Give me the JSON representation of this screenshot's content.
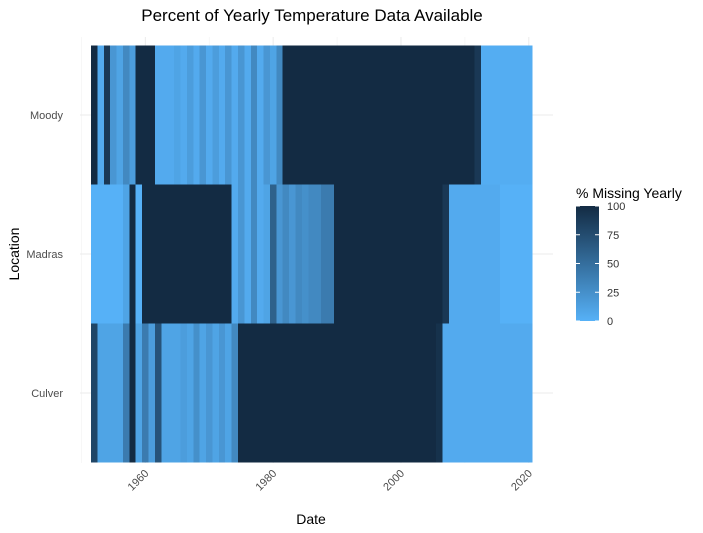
{
  "chart_data": {
    "type": "heatmap",
    "title": "Percent of Yearly Temperature Data Available",
    "xlabel": "Date",
    "ylabel": "Location",
    "xlim": [
      1951.5,
      2020.5
    ],
    "x_ticks": [
      1960,
      1980,
      2000,
      2020
    ],
    "locations": [
      "Culver",
      "Madras",
      "Moody"
    ],
    "grid": true,
    "legend": {
      "title": "% Missing Yearly",
      "position": "right",
      "min": 0,
      "max": 100,
      "ticks": [
        0,
        25,
        50,
        75,
        100
      ],
      "low_color": "#56B1F7",
      "high_color": "#132B43"
    },
    "series": [
      {
        "name": "Moody",
        "years": [
          1952,
          1953,
          1954,
          1955,
          1956,
          1957,
          1958,
          1959,
          1960,
          1961,
          1962,
          1963,
          1964,
          1965,
          1966,
          1967,
          1968,
          1969,
          1970,
          1971,
          1972,
          1973,
          1974,
          1975,
          1976,
          1977,
          1978,
          1979,
          1980,
          1981,
          1982,
          1983,
          1984,
          1985,
          1986,
          1987,
          1988,
          1989,
          1990,
          1991,
          1992,
          1993,
          1994,
          1995,
          1996,
          1997,
          1998,
          1999,
          2000,
          2001,
          2002,
          2003,
          2004,
          2005,
          2006,
          2007,
          2008,
          2009,
          2010,
          2011,
          2012,
          2013,
          2014,
          2015,
          2016,
          2017,
          2018,
          2019,
          2020
        ],
        "values": [
          100,
          5,
          90,
          20,
          10,
          30,
          15,
          100,
          100,
          100,
          5,
          5,
          5,
          10,
          5,
          15,
          5,
          20,
          5,
          15,
          5,
          20,
          5,
          20,
          5,
          30,
          5,
          20,
          10,
          30,
          100,
          100,
          100,
          100,
          100,
          100,
          100,
          100,
          100,
          100,
          100,
          100,
          100,
          100,
          100,
          100,
          100,
          100,
          100,
          100,
          100,
          100,
          100,
          100,
          100,
          100,
          100,
          100,
          100,
          100,
          90,
          3,
          3,
          3,
          3,
          3,
          3,
          3,
          3
        ]
      },
      {
        "name": "Madras",
        "years": [
          1952,
          1953,
          1954,
          1955,
          1956,
          1957,
          1958,
          1959,
          1960,
          1961,
          1962,
          1963,
          1964,
          1965,
          1966,
          1967,
          1968,
          1969,
          1970,
          1971,
          1972,
          1973,
          1974,
          1975,
          1976,
          1977,
          1978,
          1979,
          1980,
          1981,
          1982,
          1983,
          1984,
          1985,
          1986,
          1987,
          1988,
          1989,
          1990,
          1991,
          1992,
          1993,
          1994,
          1995,
          1996,
          1997,
          1998,
          1999,
          2000,
          2001,
          2002,
          2003,
          2004,
          2005,
          2006,
          2007,
          2008,
          2009,
          2010,
          2011,
          2012,
          2013,
          2014,
          2015,
          2016,
          2017,
          2018,
          2019,
          2020
        ],
        "values": [
          0,
          0,
          0,
          0,
          0,
          10,
          100,
          0,
          100,
          100,
          100,
          100,
          100,
          100,
          100,
          100,
          100,
          100,
          100,
          100,
          100,
          100,
          5,
          20,
          5,
          30,
          5,
          10,
          60,
          20,
          30,
          20,
          30,
          25,
          30,
          30,
          40,
          40,
          100,
          100,
          100,
          100,
          100,
          100,
          100,
          100,
          100,
          100,
          100,
          100,
          100,
          100,
          100,
          100,
          100,
          90,
          5,
          5,
          5,
          5,
          5,
          5,
          5,
          5,
          0,
          0,
          0,
          0,
          0
        ]
      },
      {
        "name": "Culver",
        "years": [
          1952,
          1953,
          1954,
          1955,
          1956,
          1957,
          1958,
          1959,
          1960,
          1961,
          1962,
          1963,
          1964,
          1965,
          1966,
          1967,
          1968,
          1969,
          1970,
          1971,
          1972,
          1973,
          1974,
          1975,
          1976,
          1977,
          1978,
          1979,
          1980,
          1981,
          1982,
          1983,
          1984,
          1985,
          1986,
          1987,
          1988,
          1989,
          1990,
          1991,
          1992,
          1993,
          1994,
          1995,
          1996,
          1997,
          1998,
          1999,
          2000,
          2001,
          2002,
          2003,
          2004,
          2005,
          2006,
          2007,
          2008,
          2009,
          2010,
          2011,
          2012,
          2013,
          2014,
          2015,
          2016,
          2017,
          2018,
          2019,
          2020
        ],
        "values": [
          80,
          10,
          10,
          10,
          10,
          40,
          100,
          10,
          40,
          15,
          70,
          10,
          10,
          10,
          15,
          10,
          25,
          10,
          20,
          10,
          20,
          10,
          30,
          100,
          100,
          100,
          100,
          100,
          100,
          100,
          100,
          100,
          100,
          100,
          100,
          100,
          100,
          100,
          100,
          100,
          100,
          100,
          100,
          100,
          100,
          100,
          100,
          100,
          100,
          100,
          100,
          100,
          100,
          100,
          95,
          5,
          5,
          5,
          5,
          5,
          5,
          5,
          5,
          5,
          5,
          5,
          5,
          5,
          5
        ]
      }
    ]
  }
}
